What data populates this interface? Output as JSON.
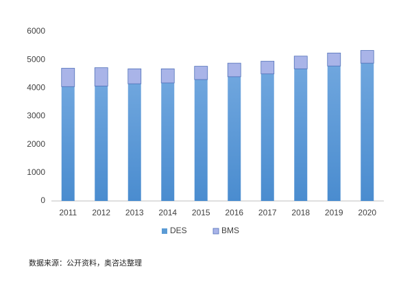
{
  "chart_data": {
    "type": "stacked_bar",
    "categories": [
      "2011",
      "2012",
      "2013",
      "2014",
      "2015",
      "2016",
      "2017",
      "2018",
      "2019",
      "2020"
    ],
    "series": [
      {
        "name": "DES",
        "color": "#5b9bd5",
        "values": [
          4050,
          4070,
          4150,
          4180,
          4300,
          4400,
          4500,
          4680,
          4780,
          4880
        ]
      },
      {
        "name": "BMS",
        "color": "#a9b4e8",
        "values": [
          650,
          650,
          530,
          500,
          470,
          480,
          450,
          450,
          460,
          450
        ]
      }
    ],
    "ylim": [
      0,
      6000
    ],
    "yticks": [
      0,
      1000,
      2000,
      3000,
      4000,
      5000,
      6000
    ],
    "grid": false,
    "legend": "bottom",
    "source": "数据来源：公开资料，奥咨达整理"
  }
}
